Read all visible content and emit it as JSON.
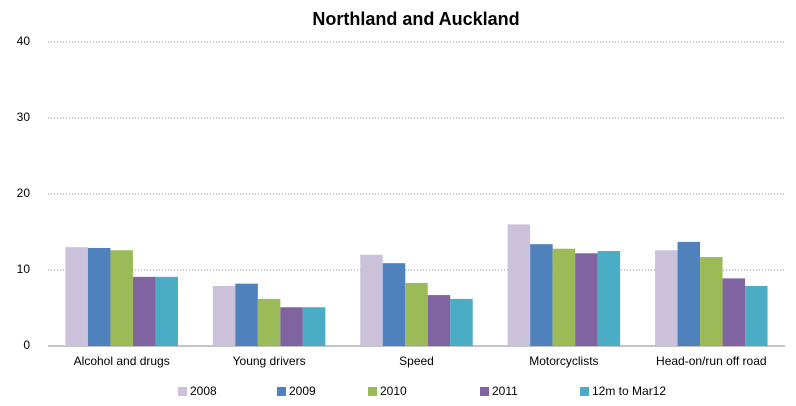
{
  "chart_data": {
    "type": "bar",
    "title": "Northland and Auckland",
    "categories": [
      "Alcohol and drugs",
      "Young drivers",
      "Speed",
      "Motorcyclists",
      "Head-on/run off road"
    ],
    "series": [
      {
        "name": "2008",
        "color": "#ccc1da",
        "values": [
          13.0,
          7.9,
          12.0,
          16.0,
          12.6
        ]
      },
      {
        "name": "2009",
        "color": "#4f81bd",
        "values": [
          12.9,
          8.2,
          10.9,
          13.4,
          13.7
        ]
      },
      {
        "name": "2010",
        "color": "#9bbb59",
        "values": [
          12.6,
          6.2,
          8.3,
          12.8,
          11.7
        ]
      },
      {
        "name": "2011",
        "color": "#8064a2",
        "values": [
          9.1,
          5.1,
          6.7,
          12.2,
          8.9
        ]
      },
      {
        "name": "12m to Mar12",
        "color": "#4bacc6",
        "values": [
          9.1,
          5.1,
          6.2,
          12.5,
          7.9
        ]
      }
    ],
    "ylim": [
      0,
      40
    ],
    "yticks": [
      0,
      10,
      20,
      30,
      40
    ],
    "grid": true,
    "legend": "bottom"
  }
}
